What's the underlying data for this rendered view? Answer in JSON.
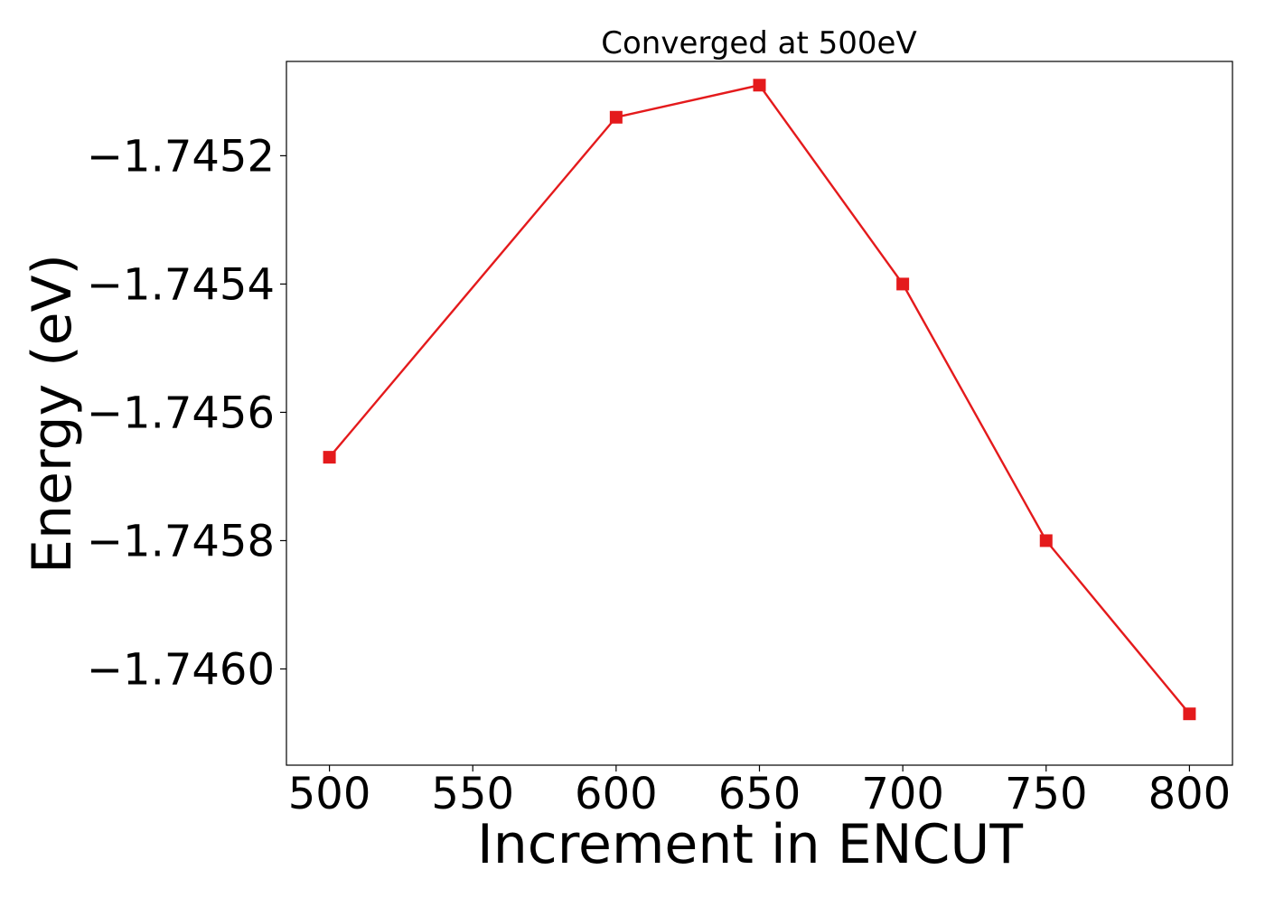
{
  "chart_data": {
    "type": "line",
    "title": "Converged at 500eV",
    "xlabel": "Increment in ENCUT",
    "ylabel": "Energy (eV)",
    "x": [
      500,
      600,
      650,
      700,
      750,
      800
    ],
    "series": [
      {
        "values": [
          -1.74567,
          -1.74514,
          -1.74509,
          -1.7454,
          -1.7458,
          -1.74607
        ],
        "color": "#e41a1c",
        "marker": "square"
      }
    ],
    "xticks": [
      500,
      550,
      600,
      650,
      700,
      750,
      800
    ],
    "xtick_labels": [
      "500",
      "550",
      "600",
      "650",
      "700",
      "750",
      "800"
    ],
    "yticks": [
      -1.7452,
      -1.7454,
      -1.7456,
      -1.7458,
      -1.746
    ],
    "ytick_labels": [
      "−1.7452",
      "−1.7454",
      "−1.7456",
      "−1.7458",
      "−1.7460"
    ],
    "xlim": [
      485,
      815
    ],
    "ylim": [
      -1.74615,
      -1.745053
    ],
    "grid": false,
    "legend": "none"
  }
}
